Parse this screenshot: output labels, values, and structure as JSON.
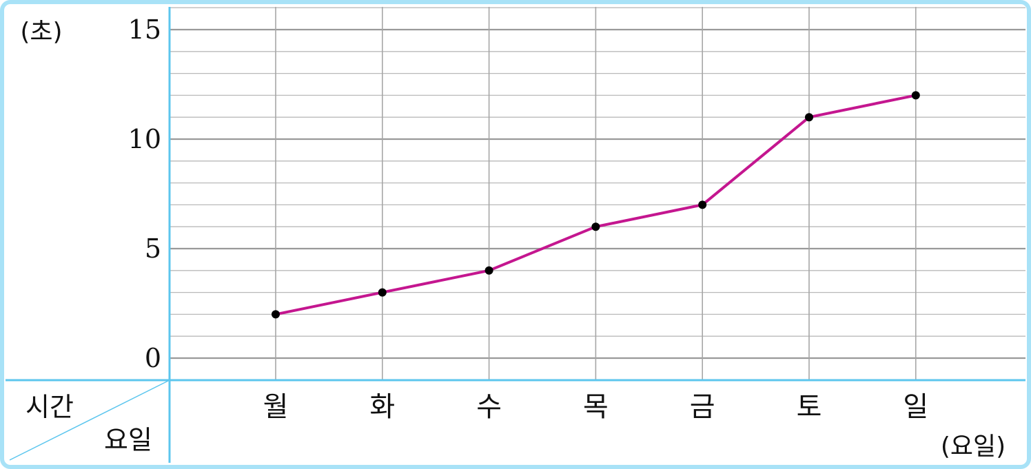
{
  "chart_data": {
    "type": "line",
    "y_unit": "(초)",
    "x_unit": "(요일)",
    "corner_top": "시간",
    "corner_bottom": "요일",
    "categories": [
      "월",
      "화",
      "수",
      "목",
      "금",
      "토",
      "일"
    ],
    "series": [
      {
        "values": [
          2,
          3,
          4,
          6,
          7,
          11,
          12
        ]
      }
    ],
    "ylim": [
      0,
      15
    ],
    "y_ticks": [
      "0",
      "5",
      "10",
      "15"
    ],
    "grid": true,
    "line_color": "#c4168f",
    "point_color": "#000000",
    "axis_color": "#5cc6ee",
    "border_color": "#a8e2f7"
  }
}
